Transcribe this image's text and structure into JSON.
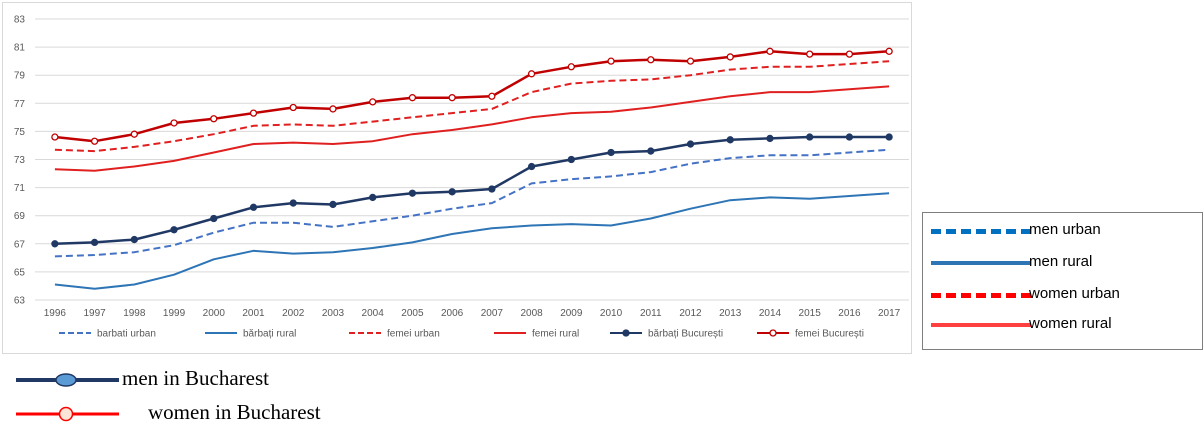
{
  "chart_data": {
    "type": "line",
    "title": "",
    "xlabel": "",
    "ylabel": "",
    "ylim": [
      63,
      83
    ],
    "yticks": [
      63,
      65,
      67,
      69,
      71,
      73,
      75,
      77,
      79,
      81,
      83
    ],
    "grid": true,
    "legend_position": "bottom",
    "categories": [
      "1996",
      "1997",
      "1998",
      "1999",
      "2000",
      "2001",
      "2002",
      "2003",
      "2004",
      "2005",
      "2006",
      "2007",
      "2008",
      "2009",
      "2010",
      "2011",
      "2012",
      "2013",
      "2014",
      "2015",
      "2016",
      "2017"
    ],
    "series": [
      {
        "name": "barbati urban",
        "color": "#4472C4",
        "style": "dashed",
        "marker": "none",
        "values": [
          66.1,
          66.2,
          66.4,
          66.9,
          67.8,
          68.5,
          68.5,
          68.2,
          68.6,
          69.0,
          69.5,
          69.9,
          71.3,
          71.6,
          71.8,
          72.1,
          72.7,
          73.1,
          73.3,
          73.3,
          73.5,
          73.7
        ]
      },
      {
        "name": "bărbați rural",
        "color": "#2E75B6",
        "style": "solid",
        "marker": "none",
        "values": [
          64.1,
          63.8,
          64.1,
          64.8,
          65.9,
          66.5,
          66.3,
          66.4,
          66.7,
          67.1,
          67.7,
          68.1,
          68.3,
          68.4,
          68.3,
          68.8,
          69.5,
          70.1,
          70.3,
          70.2,
          70.4,
          70.6
        ]
      },
      {
        "name": "femei urban",
        "color": "#E02020",
        "style": "dashed",
        "marker": "none",
        "values": [
          73.7,
          73.6,
          73.9,
          74.3,
          74.8,
          75.4,
          75.5,
          75.4,
          75.7,
          76.0,
          76.3,
          76.6,
          77.8,
          78.4,
          78.6,
          78.7,
          79.0,
          79.4,
          79.6,
          79.6,
          79.8,
          80.0
        ]
      },
      {
        "name": "femei rural",
        "color": "#E02020",
        "style": "solid",
        "marker": "none",
        "values": [
          72.3,
          72.2,
          72.5,
          72.9,
          73.5,
          74.1,
          74.2,
          74.1,
          74.3,
          74.8,
          75.1,
          75.5,
          76.0,
          76.3,
          76.4,
          76.7,
          77.1,
          77.5,
          77.8,
          77.8,
          78.0,
          78.2
        ]
      },
      {
        "name": "bărbați București",
        "color": "#203864",
        "style": "solid",
        "marker": "filled",
        "values": [
          67.0,
          67.1,
          67.3,
          68.0,
          68.8,
          69.6,
          69.9,
          69.8,
          70.3,
          70.6,
          70.7,
          70.9,
          72.5,
          73.0,
          73.5,
          73.6,
          74.1,
          74.4,
          74.5,
          74.6,
          74.6,
          74.6
        ]
      },
      {
        "name": "femei București",
        "color": "#C00000",
        "style": "solid",
        "marker": "hollow",
        "values": [
          74.6,
          74.3,
          74.8,
          75.6,
          75.9,
          76.3,
          76.7,
          76.6,
          77.1,
          77.4,
          77.4,
          77.5,
          79.1,
          79.6,
          80.0,
          80.1,
          80.0,
          80.3,
          80.7,
          80.5,
          80.5,
          80.7
        ]
      }
    ]
  },
  "side_legend": {
    "items": [
      {
        "label": "men urban",
        "color": "#0070C0",
        "style": "dashed"
      },
      {
        "label": "men rural",
        "color": "#2E75B6",
        "style": "solid"
      },
      {
        "label": "women urban",
        "color": "#FF0000",
        "style": "dashed"
      },
      {
        "label": "women rural",
        "color": "#FF4040",
        "style": "solid"
      }
    ]
  },
  "bottom_legend": {
    "items": [
      {
        "label": "men in Bucharest",
        "color": "#203864",
        "marker": "filled"
      },
      {
        "label": "women in Bucharest",
        "color": "#FF0000",
        "marker": "hollow"
      }
    ]
  }
}
